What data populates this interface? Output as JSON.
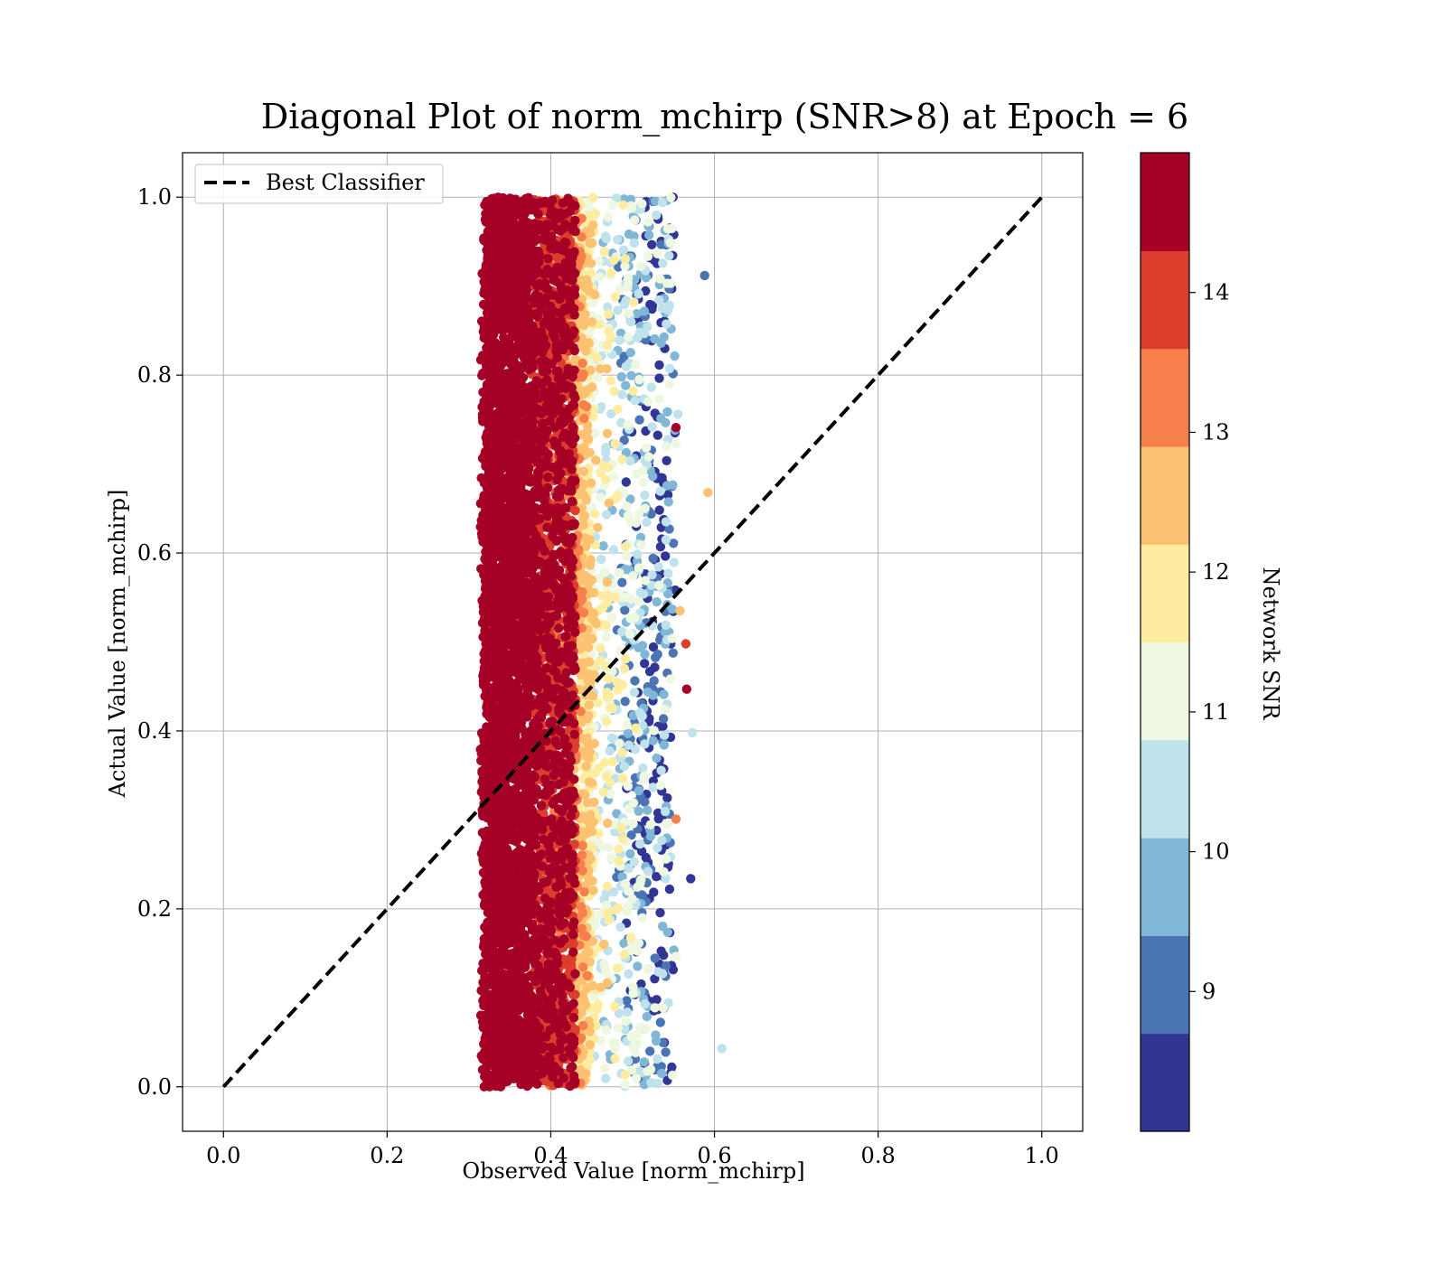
{
  "chart_data": {
    "type": "scatter",
    "title": "Diagonal Plot of norm_mchirp (SNR>8) at Epoch = 6",
    "xlabel": "Observed Value [norm_mchirp]",
    "ylabel": "Actual Value [norm_mchirp]",
    "xlim": [
      -0.05,
      1.05
    ],
    "ylim": [
      -0.05,
      1.05
    ],
    "xticks": [
      0.0,
      0.2,
      0.4,
      0.6,
      0.8,
      1.0
    ],
    "yticks": [
      0.0,
      0.2,
      0.4,
      0.6,
      0.8,
      1.0
    ],
    "xtick_labels": [
      "0.0",
      "0.2",
      "0.4",
      "0.6",
      "0.8",
      "1.0"
    ],
    "ytick_labels": [
      "0.0",
      "0.2",
      "0.4",
      "0.6",
      "0.8",
      "1.0"
    ],
    "grid": true,
    "legend": {
      "placement": "upper-left",
      "entries": [
        "Best Classifier"
      ]
    },
    "best_classifier_line": {
      "x": [
        0.0,
        1.0
      ],
      "y": [
        0.0,
        1.0
      ],
      "style": "dashed",
      "color": "#000000"
    },
    "point_distribution": {
      "x_range_bulk": [
        0.32,
        0.55
      ],
      "x_peak": 0.37,
      "y_range": [
        0.0,
        1.0
      ],
      "snr_range": [
        8.0,
        15.0
      ],
      "high_snr_near_x": 0.36,
      "low_snr_near_x": 0.52
    },
    "outliers": [
      {
        "x": 0.588,
        "y": 0.912,
        "snr": 9.2
      },
      {
        "x": 0.592,
        "y": 0.668,
        "snr": 12.6
      },
      {
        "x": 0.573,
        "y": 0.398,
        "snr": 10.6
      },
      {
        "x": 0.571,
        "y": 0.234,
        "snr": 8.3
      },
      {
        "x": 0.609,
        "y": 0.043,
        "snr": 10.4
      },
      {
        "x": 0.566,
        "y": 0.447,
        "snr": 14.8
      },
      {
        "x": 0.565,
        "y": 0.498,
        "snr": 14.2
      },
      {
        "x": 0.558,
        "y": 0.535,
        "snr": 12.4
      },
      {
        "x": 0.553,
        "y": 0.301,
        "snr": 13.4
      },
      {
        "x": 0.553,
        "y": 0.741,
        "snr": 14.3
      }
    ],
    "colorbar": {
      "label": "Network SNR",
      "range": [
        8.0,
        15.0
      ],
      "tick_values": [
        9,
        10,
        11,
        12,
        13,
        14
      ],
      "tick_labels": [
        "9",
        "10",
        "11",
        "12",
        "13",
        "14"
      ],
      "colors": [
        "#313695",
        "#4a74b4",
        "#81b7d6",
        "#bfe2ed",
        "#eef7e0",
        "#feeda1",
        "#fcc171",
        "#f67f4b",
        "#dc3d2d",
        "#a50026"
      ]
    }
  }
}
